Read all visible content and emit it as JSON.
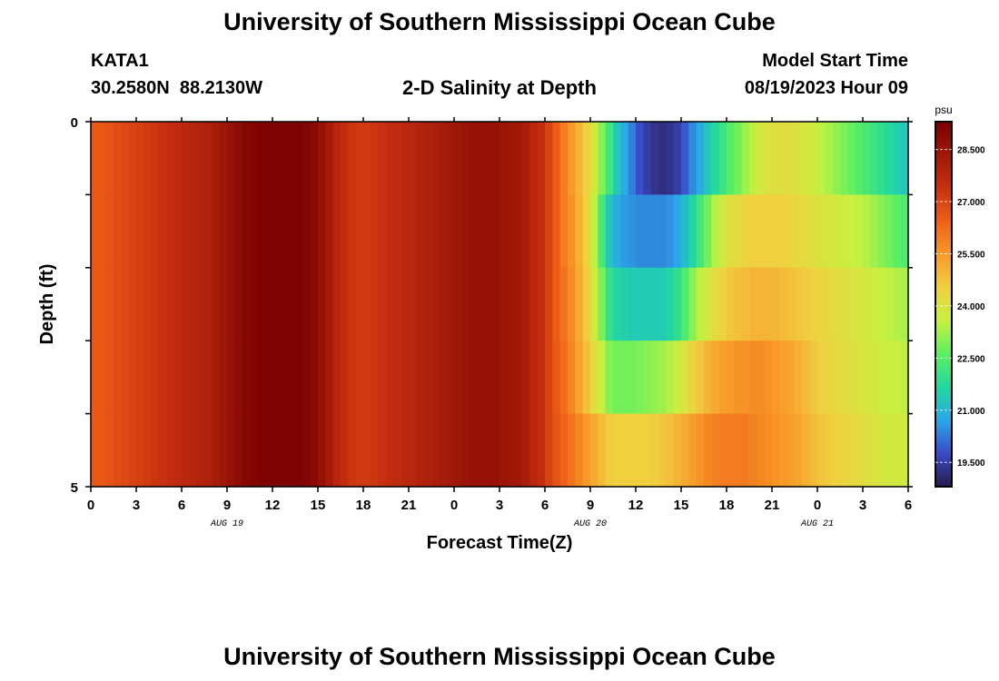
{
  "page": {
    "title": "University of Southern Mississippi Ocean Cube",
    "bottom_title": "University of Southern Mississippi Ocean Cube",
    "station": "KATA1",
    "coords": "30.2580N  88.2130W",
    "model_label": "Model Start Time",
    "model_time": "08/19/2023 Hour 09"
  },
  "colors": {
    "scale": [
      "#2a1a4a",
      "#3a4ac8",
      "#2aa8e8",
      "#22d8a0",
      "#5cf060",
      "#c8f040",
      "#f0d040",
      "#f89a28",
      "#f06018",
      "#c83010",
      "#a01808",
      "#7a0000"
    ]
  },
  "chart_data": {
    "type": "heatmap",
    "title": "2-D Salinity at Depth",
    "xlabel": "Forecast Time(Z)",
    "ylabel": "Depth (ft)",
    "x_tick_labels": [
      "0",
      "3",
      "6",
      "9",
      "12",
      "15",
      "18",
      "21",
      "0",
      "3",
      "6",
      "9",
      "12",
      "15",
      "18",
      "21",
      "0",
      "3",
      "6"
    ],
    "date_labels": [
      {
        "label": "AUG 19",
        "hour_index": 18
      },
      {
        "label": "AUG 20",
        "hour_index": 66
      },
      {
        "label": "AUG 21",
        "hour_index": 96
      }
    ],
    "y_tick_labels": [
      "0",
      "5"
    ],
    "ylim": [
      0,
      5
    ],
    "depth_levels": [
      0.5,
      1.5,
      2.5,
      3.5,
      4.5
    ],
    "hours": 108,
    "hour_step": 1,
    "colorbar": {
      "unit": "psu",
      "ticks": [
        28.5,
        27.0,
        25.5,
        24.0,
        22.5,
        21.0,
        19.5
      ],
      "tick_labels": [
        "28.500",
        "27.000",
        "25.500",
        "24.000",
        "22.500",
        "21.000",
        "19.500"
      ],
      "range": [
        18.8,
        29.3
      ]
    },
    "salinity_psu": [
      [
        26.6,
        26.6,
        26.7,
        26.8,
        26.9,
        27.0,
        27.1,
        27.2,
        27.3,
        27.4,
        27.5,
        27.6,
        27.7,
        27.8,
        27.9,
        28.0,
        28.2,
        28.4,
        28.6,
        28.8,
        29.0,
        29.1,
        29.2,
        29.2,
        29.2,
        29.2,
        29.2,
        29.2,
        29.1,
        28.9,
        28.6,
        28.2,
        27.8,
        27.5,
        27.3,
        27.2,
        27.2,
        27.3,
        27.4,
        27.5,
        27.6,
        27.7,
        27.8,
        27.9,
        28.0,
        28.1,
        28.2,
        28.3,
        28.4,
        28.5,
        28.6,
        28.6,
        28.6,
        28.6,
        28.5,
        28.4,
        28.3,
        28.1,
        27.8,
        27.5,
        27.0,
        26.5,
        26.0,
        25.5,
        25.0,
        24.5,
        23.8,
        23.0,
        22.2,
        21.4,
        20.8,
        20.3,
        19.8,
        19.5,
        19.3,
        19.2,
        19.3,
        19.5,
        19.9,
        20.4,
        20.8,
        21.3,
        21.7,
        22.1,
        22.5,
        22.8,
        23.2,
        23.5,
        23.8,
        24.0,
        24.1,
        24.1,
        24.1,
        24.0,
        23.9,
        23.7,
        23.5,
        23.3,
        23.1,
        22.9,
        22.7,
        22.5,
        22.3,
        22.1,
        21.9,
        21.7,
        21.5,
        21.3
      ],
      [
        26.6,
        26.6,
        26.7,
        26.8,
        26.9,
        27.0,
        27.1,
        27.2,
        27.3,
        27.4,
        27.5,
        27.6,
        27.7,
        27.8,
        27.9,
        28.0,
        28.2,
        28.4,
        28.6,
        28.8,
        29.0,
        29.1,
        29.2,
        29.2,
        29.2,
        29.2,
        29.2,
        29.2,
        29.1,
        28.9,
        28.6,
        28.2,
        27.8,
        27.5,
        27.3,
        27.2,
        27.2,
        27.3,
        27.4,
        27.5,
        27.6,
        27.7,
        27.8,
        27.9,
        28.0,
        28.1,
        28.2,
        28.3,
        28.4,
        28.5,
        28.6,
        28.6,
        28.6,
        28.6,
        28.5,
        28.4,
        28.3,
        28.1,
        27.8,
        27.5,
        27.0,
        26.5,
        26.0,
        25.6,
        25.1,
        24.5,
        23.5,
        22.3,
        21.3,
        20.8,
        20.6,
        20.5,
        20.4,
        20.4,
        20.4,
        20.4,
        20.5,
        20.7,
        21.1,
        21.6,
        22.2,
        22.8,
        23.4,
        23.8,
        24.1,
        24.3,
        24.4,
        24.5,
        24.5,
        24.5,
        24.5,
        24.5,
        24.4,
        24.3,
        24.2,
        24.1,
        24.0,
        23.9,
        23.8,
        23.7,
        23.6,
        23.5,
        23.4,
        23.2,
        23.0,
        22.8,
        22.6,
        22.4
      ],
      [
        26.6,
        26.6,
        26.7,
        26.8,
        26.9,
        27.0,
        27.1,
        27.2,
        27.3,
        27.4,
        27.5,
        27.6,
        27.7,
        27.8,
        27.9,
        28.0,
        28.2,
        28.4,
        28.6,
        28.8,
        29.0,
        29.1,
        29.2,
        29.2,
        29.2,
        29.2,
        29.2,
        29.2,
        29.1,
        28.9,
        28.6,
        28.2,
        27.8,
        27.5,
        27.3,
        27.2,
        27.2,
        27.3,
        27.4,
        27.5,
        27.6,
        27.7,
        27.8,
        27.9,
        28.0,
        28.1,
        28.2,
        28.3,
        28.4,
        28.5,
        28.6,
        28.6,
        28.6,
        28.6,
        28.5,
        28.4,
        28.3,
        28.1,
        27.8,
        27.5,
        27.0,
        26.5,
        26.1,
        25.7,
        25.2,
        24.6,
        23.8,
        22.9,
        22.0,
        21.6,
        21.5,
        21.4,
        21.4,
        21.4,
        21.4,
        21.4,
        21.6,
        21.9,
        22.4,
        23.0,
        23.5,
        23.9,
        24.2,
        24.5,
        24.7,
        24.8,
        24.9,
        25.0,
        25.0,
        25.0,
        25.0,
        24.9,
        24.8,
        24.7,
        24.6,
        24.5,
        24.4,
        24.3,
        24.2,
        24.1,
        24.0,
        23.9,
        23.8,
        23.7,
        23.6,
        23.5,
        23.4,
        23.3
      ],
      [
        26.6,
        26.6,
        26.7,
        26.8,
        26.9,
        27.0,
        27.1,
        27.2,
        27.3,
        27.4,
        27.5,
        27.6,
        27.7,
        27.8,
        27.9,
        28.0,
        28.2,
        28.4,
        28.6,
        28.8,
        29.0,
        29.1,
        29.2,
        29.2,
        29.2,
        29.2,
        29.2,
        29.2,
        29.1,
        28.9,
        28.6,
        28.2,
        27.8,
        27.5,
        27.3,
        27.2,
        27.2,
        27.3,
        27.4,
        27.5,
        27.6,
        27.7,
        27.8,
        27.9,
        28.0,
        28.1,
        28.2,
        28.3,
        28.4,
        28.5,
        28.6,
        28.6,
        28.6,
        28.6,
        28.5,
        28.4,
        28.3,
        28.1,
        27.8,
        27.5,
        27.0,
        26.6,
        26.2,
        25.8,
        25.3,
        24.8,
        24.2,
        23.6,
        23.0,
        22.8,
        22.8,
        22.8,
        22.9,
        23.0,
        23.1,
        23.2,
        23.4,
        23.7,
        24.0,
        24.4,
        24.7,
        25.0,
        25.2,
        25.4,
        25.5,
        25.6,
        25.6,
        25.7,
        25.7,
        25.6,
        25.5,
        25.4,
        25.3,
        25.1,
        24.9,
        24.7,
        24.5,
        24.4,
        24.3,
        24.2,
        24.1,
        24.0,
        23.9,
        23.8,
        23.7,
        23.6,
        23.6,
        23.5
      ],
      [
        26.6,
        26.6,
        26.7,
        26.8,
        26.9,
        27.0,
        27.1,
        27.2,
        27.3,
        27.4,
        27.5,
        27.6,
        27.7,
        27.8,
        27.9,
        28.0,
        28.2,
        28.4,
        28.6,
        28.8,
        29.0,
        29.1,
        29.2,
        29.2,
        29.2,
        29.2,
        29.2,
        29.2,
        29.1,
        28.9,
        28.6,
        28.2,
        27.8,
        27.5,
        27.3,
        27.2,
        27.2,
        27.3,
        27.4,
        27.5,
        27.6,
        27.7,
        27.8,
        27.9,
        28.0,
        28.1,
        28.2,
        28.3,
        28.4,
        28.5,
        28.6,
        28.6,
        28.6,
        28.6,
        28.5,
        28.4,
        28.3,
        28.1,
        27.8,
        27.5,
        27.0,
        26.7,
        26.4,
        26.1,
        25.8,
        25.5,
        25.2,
        24.9,
        24.6,
        24.5,
        24.5,
        24.5,
        24.5,
        24.5,
        24.6,
        24.7,
        24.8,
        25.0,
        25.2,
        25.4,
        25.6,
        25.8,
        25.9,
        26.0,
        26.0,
        26.0,
        26.0,
        25.9,
        25.8,
        25.7,
        25.6,
        25.5,
        25.4,
        25.3,
        25.1,
        24.9,
        24.7,
        24.6,
        24.5,
        24.4,
        24.3,
        24.2,
        24.1,
        24.0,
        23.9,
        23.8,
        23.8,
        23.7
      ]
    ]
  }
}
